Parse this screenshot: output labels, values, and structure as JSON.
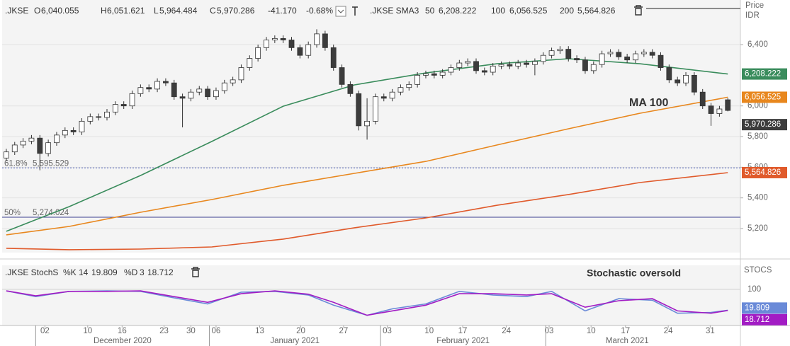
{
  "chart_data": {
    "type": "candlestick",
    "xlim": [
      -0.5,
      87.5
    ],
    "ylim": [
      5043,
      6691
    ],
    "yticks": [
      {
        "value": 5200,
        "label": "5,200"
      },
      {
        "value": 5400,
        "label": "5,400"
      },
      {
        "value": 5600,
        "label": "5,600"
      },
      {
        "value": 5800,
        "label": "5,800"
      },
      {
        "value": 6000,
        "label": "6,000"
      },
      {
        "value": 6400,
        "label": "6,400"
      }
    ],
    "y_axis_label": "Price",
    "y_axis_unit": "IDR",
    "grid": true,
    "xticks": [
      {
        "value": 4.6,
        "label": "02"
      },
      {
        "value": 9.7,
        "label": "10"
      },
      {
        "value": 13.8,
        "label": "16"
      },
      {
        "value": 18.8,
        "label": "23"
      },
      {
        "value": 22.0,
        "label": "30"
      },
      {
        "value": 25.0,
        "label": "06"
      },
      {
        "value": 30.2,
        "label": "13"
      },
      {
        "value": 35.1,
        "label": "20"
      },
      {
        "value": 40.2,
        "label": "27"
      },
      {
        "value": 45.4,
        "label": "03"
      },
      {
        "value": 50.4,
        "label": "10"
      },
      {
        "value": 54.4,
        "label": "17"
      },
      {
        "value": 59.6,
        "label": "24"
      },
      {
        "value": 64.7,
        "label": "03"
      },
      {
        "value": 69.7,
        "label": "10"
      },
      {
        "value": 73.8,
        "label": "17"
      },
      {
        "value": 78.9,
        "label": "24"
      },
      {
        "value": 83.9,
        "label": "31"
      }
    ],
    "months": [
      {
        "value": 3.5,
        "label": "December 2020"
      },
      {
        "value": 24.2,
        "label": "January 2021"
      },
      {
        "value": 44.6,
        "label": "February 2021"
      },
      {
        "value": 64.3,
        "label": "March 2021"
      }
    ],
    "candles": {
      "name": ".JKSE",
      "up_color": "#ffffff",
      "down_color": "#3c3c3c",
      "outline_color": "#333333",
      "open": [
        5660,
        5700,
        5745,
        5770,
        5790,
        5690,
        5760,
        5810,
        5840,
        5830,
        5900,
        5930,
        5925,
        5960,
        6010,
        6000,
        6080,
        6120,
        6110,
        6160,
        6150,
        6060,
        6050,
        6090,
        6110,
        6060,
        6100,
        6150,
        6170,
        6250,
        6310,
        6380,
        6430,
        6440,
        6430,
        6380,
        6330,
        6400,
        6470,
        6380,
        6250,
        6140,
        6080,
        5870,
        5900,
        6060,
        6050,
        6090,
        6120,
        6140,
        6200,
        6210,
        6200,
        6220,
        6250,
        6280,
        6290,
        6230,
        6220,
        6260,
        6270,
        6260,
        6280,
        6270,
        6290,
        6330,
        6360,
        6370,
        6310,
        6300,
        6230,
        6270,
        6340,
        6350,
        6320,
        6300,
        6340,
        6350,
        6330,
        6250,
        6170,
        6150,
        6200,
        6090,
        6000,
        5950,
        6040.055
      ],
      "high": [
        5720,
        5765,
        5790,
        5810,
        5810,
        5780,
        5830,
        5860,
        5860,
        5920,
        5950,
        5950,
        5980,
        6030,
        6030,
        6100,
        6140,
        6140,
        6180,
        6180,
        6170,
        6080,
        6110,
        6130,
        6130,
        6120,
        6170,
        6190,
        6270,
        6330,
        6400,
        6450,
        6460,
        6460,
        6450,
        6400,
        6420,
        6500,
        6490,
        6400,
        6270,
        6160,
        6100,
        6050,
        6080,
        6080,
        6110,
        6140,
        6160,
        6220,
        6230,
        6230,
        6240,
        6270,
        6300,
        6310,
        6310,
        6250,
        6280,
        6290,
        6290,
        6300,
        6300,
        6310,
        6350,
        6380,
        6390,
        6390,
        6330,
        6320,
        6290,
        6360,
        6370,
        6370,
        6340,
        6360,
        6370,
        6370,
        6350,
        6270,
        6190,
        6220,
        6220,
        6110,
        6020,
        6000,
        6051.621
      ],
      "low": [
        5640,
        5680,
        5725,
        5750,
        5580,
        5670,
        5740,
        5790,
        5810,
        5810,
        5880,
        5905,
        5905,
        5940,
        5980,
        5980,
        6060,
        6090,
        6090,
        6130,
        6040,
        5860,
        6030,
        6070,
        6040,
        6040,
        6080,
        6130,
        6150,
        6230,
        6290,
        6360,
        6410,
        6410,
        6360,
        6310,
        6310,
        6380,
        6360,
        6230,
        6120,
        6060,
        5840,
        5780,
        5880,
        6030,
        6030,
        6070,
        6100,
        6120,
        6180,
        6180,
        6180,
        6200,
        6230,
        6260,
        6210,
        6200,
        6200,
        6240,
        6240,
        6240,
        6250,
        6200,
        6270,
        6310,
        6340,
        6290,
        6280,
        6210,
        6210,
        6250,
        6320,
        6300,
        6280,
        6280,
        6320,
        6310,
        6230,
        6150,
        6130,
        6130,
        6070,
        5980,
        5870,
        5930,
        5964.484
      ],
      "close": [
        5700,
        5745,
        5770,
        5790,
        5690,
        5760,
        5810,
        5840,
        5830,
        5900,
        5930,
        5925,
        5960,
        6010,
        6000,
        6080,
        6120,
        6110,
        6160,
        6150,
        6060,
        6050,
        6090,
        6110,
        6060,
        6100,
        6150,
        6170,
        6250,
        6310,
        6380,
        6430,
        6440,
        6430,
        6380,
        6330,
        6400,
        6470,
        6380,
        6250,
        6140,
        6080,
        5870,
        5900,
        6060,
        6050,
        6090,
        6120,
        6140,
        6200,
        6210,
        6200,
        6220,
        6250,
        6280,
        6290,
        6230,
        6220,
        6260,
        6270,
        6260,
        6280,
        6270,
        6290,
        6330,
        6360,
        6370,
        6310,
        6300,
        6230,
        6270,
        6340,
        6350,
        6320,
        6300,
        6340,
        6350,
        6330,
        6250,
        6170,
        6150,
        6200,
        6090,
        6000,
        5950,
        5980,
        5970.286
      ],
      "value_labels": {
        "open": "6,040.055",
        "high": "6,051.621",
        "low": "5,964.484",
        "close": "5,970.286"
      },
      "change": -41.17,
      "change_label": "-41.170",
      "change_pct": -0.68,
      "change_pct_label": "-0.68%",
      "change_color": "#e0403a"
    },
    "ma_title": ".JKSE SMA3",
    "series": [
      {
        "name": "50",
        "color": "#3a8c5c",
        "x": [
          0,
          7.5,
          16,
          24.5,
          33,
          41.5,
          50,
          58.5,
          67,
          75.5,
          86
        ],
        "values": [
          5182,
          5343,
          5546,
          5768,
          5998,
          6137,
          6215,
          6275,
          6308,
          6275,
          6208.222
        ],
        "value_label": "6,208.222"
      },
      {
        "name": "100",
        "color": "#e8871e",
        "x": [
          0,
          7.5,
          16,
          24.5,
          33,
          41.5,
          50,
          58.5,
          67,
          75.5,
          86
        ],
        "values": [
          5159,
          5214,
          5306,
          5389,
          5482,
          5560,
          5638,
          5745,
          5851,
          5952,
          6056.525
        ],
        "value_label": "6,056.525"
      },
      {
        "name": "200",
        "color": "#e05a2b",
        "x": [
          0,
          7.5,
          16,
          24.5,
          33,
          41.5,
          50,
          58.5,
          67,
          75.5,
          86
        ],
        "values": [
          5071,
          5062,
          5066,
          5080,
          5131,
          5205,
          5269,
          5352,
          5422,
          5500,
          5564.826
        ],
        "value_label": "5,564.826"
      }
    ],
    "levels": [
      {
        "label": "61.8%",
        "value": 5595.529,
        "value_label": "5,595.529",
        "color": "#7a86c8",
        "style": "dotted"
      },
      {
        "label": "50%",
        "value": 5274.024,
        "value_label": "5,274.024",
        "color": "#3b3f8f",
        "style": "solid"
      }
    ],
    "annotations": [
      {
        "text": "MA 100",
        "color": "#e8871e"
      }
    ],
    "stochastic": {
      "title": ".JKSE StochS",
      "axis_label": "STOCS",
      "annotation": "Stochastic oversold",
      "ylim": [
        -39,
        192
      ],
      "yticks": [
        100
      ],
      "k": {
        "name": "%K",
        "period": 14,
        "color": "#6a8ad8",
        "x": [
          0,
          3.5,
          7.5,
          12,
          16,
          20,
          24,
          28,
          32,
          36,
          39,
          43,
          46,
          50,
          54,
          58,
          62,
          65,
          69,
          73,
          77,
          80,
          84,
          86
        ],
        "values": [
          94,
          72,
          92,
          94,
          92,
          67,
          44,
          89,
          92,
          78,
          39,
          0,
          25,
          44,
          92,
          78,
          72,
          92,
          17,
          64,
          58,
          8,
          11,
          19.809
        ]
      },
      "d": {
        "name": "%D",
        "period": 3,
        "color": "#a21cc4",
        "x": [
          0,
          3.5,
          7.5,
          12,
          16,
          20,
          24,
          28,
          32,
          36,
          39,
          43,
          46,
          50,
          54,
          58,
          62,
          65,
          69,
          73,
          77,
          80,
          84,
          86
        ],
        "values": [
          94,
          75,
          92,
          92,
          94,
          72,
          50,
          83,
          94,
          81,
          50,
          0,
          17,
          39,
          83,
          83,
          78,
          83,
          31,
          56,
          64,
          17,
          8,
          18.712
        ]
      }
    }
  }
}
